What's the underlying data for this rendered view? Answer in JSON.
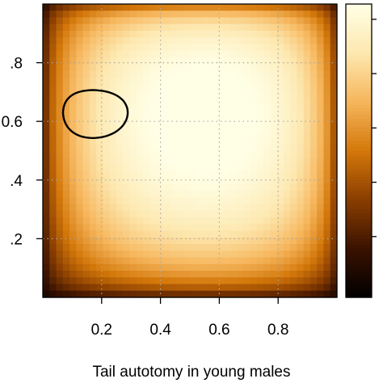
{
  "chart_data": {
    "type": "heatmap",
    "title": "",
    "xlabel": "Tail autotomy in young males",
    "ylabel": "",
    "xlim": [
      0,
      1
    ],
    "ylim": [
      0,
      1
    ],
    "x_ticks": [
      0.2,
      0.4,
      0.6,
      0.8
    ],
    "y_ticks": [
      0.2,
      0.4,
      0.6,
      0.8
    ],
    "x_tick_labels": [
      "0.2",
      "0.4",
      "0.6",
      "0.8"
    ],
    "y_tick_labels": [
      ".2",
      ".4",
      "0.6",
      ".8"
    ],
    "grid": true,
    "grid_style": "dotted",
    "colorbar": true,
    "colorbar_placement": "right",
    "colormap": [
      "#000000",
      "#3a1200",
      "#8a3e00",
      "#d4780a",
      "#f6b65c",
      "#fde8b0",
      "#ffffe6"
    ],
    "surface_peak": [
      0.38,
      0.66
    ],
    "contour": {
      "center": [
        0.17,
        0.63
      ],
      "radius": [
        0.11,
        0.085
      ],
      "color": "#000000"
    }
  }
}
